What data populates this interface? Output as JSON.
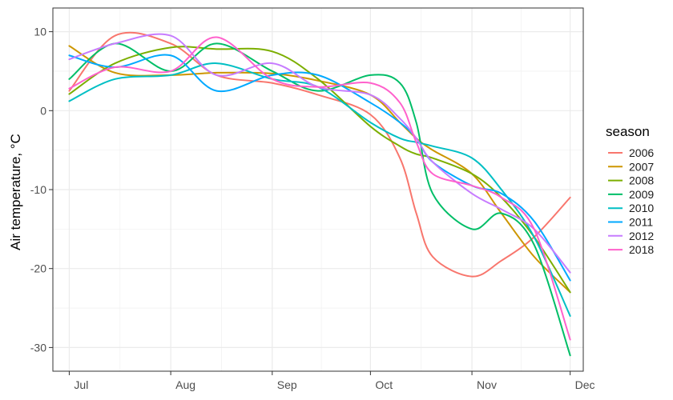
{
  "chart_data": {
    "type": "line",
    "title": "",
    "xlabel": "",
    "ylabel": "Air temperature, °C",
    "x_tick_labels": [
      "Jul",
      "Aug",
      "Sep",
      "Oct",
      "Nov",
      "Dec"
    ],
    "x": [
      "Jul 1",
      "Jul 15",
      "Aug 1",
      "Aug 15",
      "Sep 1",
      "Sep 15",
      "Oct 1",
      "Oct 10",
      "Oct 15",
      "Oct 20",
      "Nov 1",
      "Nov 10",
      "Nov 20",
      "Dec 1"
    ],
    "x_offsets": [
      0,
      14,
      31,
      45,
      62,
      76,
      92,
      101,
      106,
      111,
      123,
      132,
      142,
      153
    ],
    "xlim": [
      -5,
      157
    ],
    "ylim": [
      -33,
      13
    ],
    "y_ticks": [
      10,
      0,
      -10,
      -20,
      -30
    ],
    "grid": true,
    "legend": {
      "title": "season",
      "position": "right",
      "entries": [
        "2006",
        "2007",
        "2008",
        "2009",
        "2010",
        "2011",
        "2012",
        "2018"
      ]
    },
    "series": [
      {
        "name": "2006",
        "color": "#F8766D",
        "values": [
          2.5,
          9.5,
          8.5,
          4.5,
          3.5,
          2.0,
          -0.5,
          -6.0,
          -13.0,
          -18.5,
          -21.0,
          -19.0,
          -16.0,
          -11.0
        ]
      },
      {
        "name": "2007",
        "color": "#CD9600",
        "values": [
          8.2,
          4.8,
          4.5,
          4.8,
          4.7,
          3.8,
          2.0,
          -1.5,
          -3.5,
          -5.0,
          -8.0,
          -13.0,
          -18.5,
          -23.0
        ]
      },
      {
        "name": "2008",
        "color": "#7CAE00",
        "values": [
          2.1,
          6.0,
          8.0,
          7.8,
          7.5,
          4.0,
          -2.0,
          -4.5,
          -5.5,
          -6.0,
          -8.0,
          -11.0,
          -16.0,
          -23.0
        ]
      },
      {
        "name": "2009",
        "color": "#00BE67",
        "values": [
          4.0,
          8.5,
          5.0,
          8.5,
          5.0,
          2.5,
          4.5,
          3.5,
          -1.5,
          -10.5,
          -15.0,
          -13.0,
          -17.0,
          -31.0
        ]
      },
      {
        "name": "2010",
        "color": "#00BFC4",
        "values": [
          1.2,
          4.0,
          4.5,
          6.0,
          4.0,
          3.0,
          -1.5,
          -3.5,
          -4.0,
          -4.5,
          -6.0,
          -10.0,
          -16.0,
          -26.0
        ]
      },
      {
        "name": "2011",
        "color": "#00A9FF",
        "values": [
          7.0,
          5.5,
          7.0,
          2.5,
          4.5,
          4.5,
          1.0,
          -1.5,
          -3.5,
          -6.5,
          -9.5,
          -10.5,
          -14.0,
          -21.5
        ]
      },
      {
        "name": "2012",
        "color": "#C77CFF",
        "values": [
          6.5,
          8.5,
          9.5,
          4.5,
          6.0,
          3.0,
          2.0,
          -1.0,
          -3.5,
          -6.5,
          -10.5,
          -12.5,
          -15.0,
          -20.5
        ]
      },
      {
        "name": "2018",
        "color": "#FF61CC",
        "values": [
          2.8,
          5.5,
          5.0,
          9.3,
          4.0,
          3.0,
          3.5,
          1.0,
          -4.0,
          -8.0,
          -9.5,
          -11.0,
          -15.0,
          -29.0
        ]
      }
    ]
  }
}
